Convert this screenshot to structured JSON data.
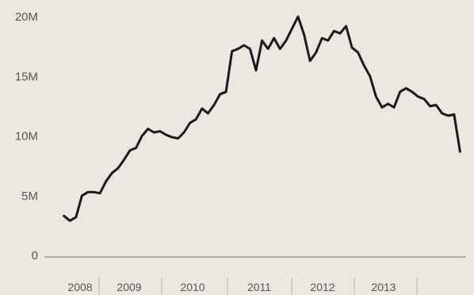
{
  "colors": {
    "background": "#ece8e1",
    "line": "#1a1a1a",
    "axis": "#8a8a8a",
    "text": "#555555"
  },
  "chart_data": {
    "type": "line",
    "title": "",
    "xlabel": "",
    "ylabel": "",
    "ylim": [
      0,
      20000000
    ],
    "xlim": [
      "2008-06",
      "2014-04"
    ],
    "y_ticks": [
      {
        "value": 0,
        "label": "0"
      },
      {
        "value": 5000000,
        "label": "5M"
      },
      {
        "value": 10000000,
        "label": "10M"
      },
      {
        "value": 15000000,
        "label": "15M"
      },
      {
        "value": 20000000,
        "label": "20M"
      }
    ],
    "x_ticks": [
      "2008",
      "2009",
      "2010",
      "2011",
      "2012",
      "2013"
    ],
    "grid": false,
    "series": [
      {
        "x": [
          "2008-09",
          "2008-10",
          "2008-11",
          "2008-12",
          "2009-01",
          "2009-02",
          "2009-03",
          "2009-04",
          "2009-05",
          "2009-06",
          "2009-07",
          "2009-08",
          "2009-09",
          "2009-10",
          "2009-11",
          "2009-12",
          "2010-01",
          "2010-02",
          "2010-03",
          "2010-04",
          "2010-05",
          "2010-06",
          "2010-07",
          "2010-08",
          "2010-09",
          "2010-10",
          "2010-11",
          "2010-12",
          "2011-01",
          "2011-02",
          "2011-03",
          "2011-04",
          "2011-05",
          "2011-06",
          "2011-07",
          "2011-08",
          "2011-09",
          "2011-10",
          "2011-11",
          "2011-12",
          "2012-01",
          "2012-02",
          "2012-03",
          "2012-04",
          "2012-05",
          "2012-06",
          "2012-07",
          "2012-08",
          "2012-09",
          "2012-10",
          "2012-11",
          "2012-12",
          "2013-01",
          "2013-02",
          "2013-03",
          "2013-04",
          "2013-05",
          "2013-06",
          "2013-07",
          "2013-08",
          "2013-09",
          "2013-10",
          "2013-11",
          "2013-12",
          "2014-01",
          "2014-02",
          "2014-03"
        ],
        "values": [
          3300000,
          2900000,
          3200000,
          5000000,
          5300000,
          5300000,
          5200000,
          6200000,
          6900000,
          7300000,
          8000000,
          8800000,
          9000000,
          10000000,
          10600000,
          10300000,
          10400000,
          10100000,
          9900000,
          9800000,
          10300000,
          11100000,
          11400000,
          12300000,
          11900000,
          12600000,
          13500000,
          13700000,
          17100000,
          17300000,
          17600000,
          17300000,
          15500000,
          18000000,
          17300000,
          18200000,
          17300000,
          18000000,
          19000000,
          20000000,
          18500000,
          16300000,
          17000000,
          18200000,
          18000000,
          18800000,
          18600000,
          19200000,
          17400000,
          17000000,
          15900000,
          15000000,
          13300000,
          12400000,
          12700000,
          12400000,
          13700000,
          14000000,
          13700000,
          13300000,
          13100000,
          12500000,
          12600000,
          11900000,
          11700000,
          11800000,
          8700000
        ]
      }
    ]
  }
}
